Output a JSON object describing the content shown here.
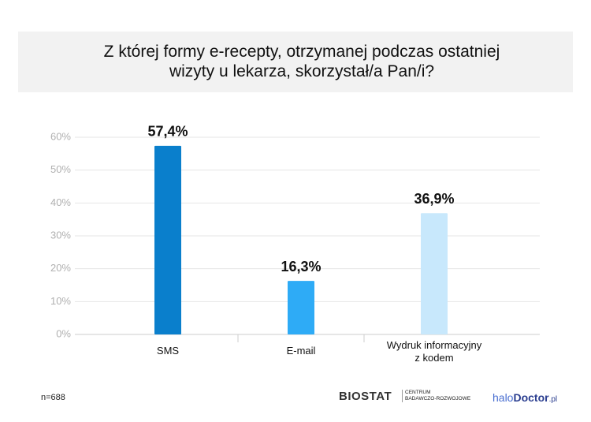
{
  "chart_data": {
    "type": "bar",
    "title": "Z której formy e-recepty, otrzymanej podczas ostatniej wizyty u lekarza, skorzystał/a Pan/i?",
    "categories": [
      "SMS",
      "E-mail",
      "Wydruk informacyjny z kodem"
    ],
    "values": [
      57.4,
      16.3,
      36.9
    ],
    "value_labels": [
      "57,4%",
      "16,3%",
      "36,9%"
    ],
    "colors": [
      "#0a7fcc",
      "#2eabf6",
      "#c8e8fc"
    ],
    "ylim": [
      0,
      60
    ],
    "yticks": [
      {
        "value": 0,
        "label": "0%"
      },
      {
        "value": 10,
        "label": "10%"
      },
      {
        "value": 20,
        "label": "20%"
      },
      {
        "value": 30,
        "label": "30%"
      },
      {
        "value": 40,
        "label": "40%"
      },
      {
        "value": 50,
        "label": "50%"
      },
      {
        "value": 60,
        "label": "60%"
      }
    ],
    "grid": true
  },
  "footer": {
    "note": "n=688",
    "biostat": "BIOSTAT",
    "biostat_sub": [
      "CENTRUM",
      "BADAWCZO-ROZWOJOWE"
    ],
    "halo": "halo",
    "doctor": "Doctor",
    "pl": ".pl"
  }
}
